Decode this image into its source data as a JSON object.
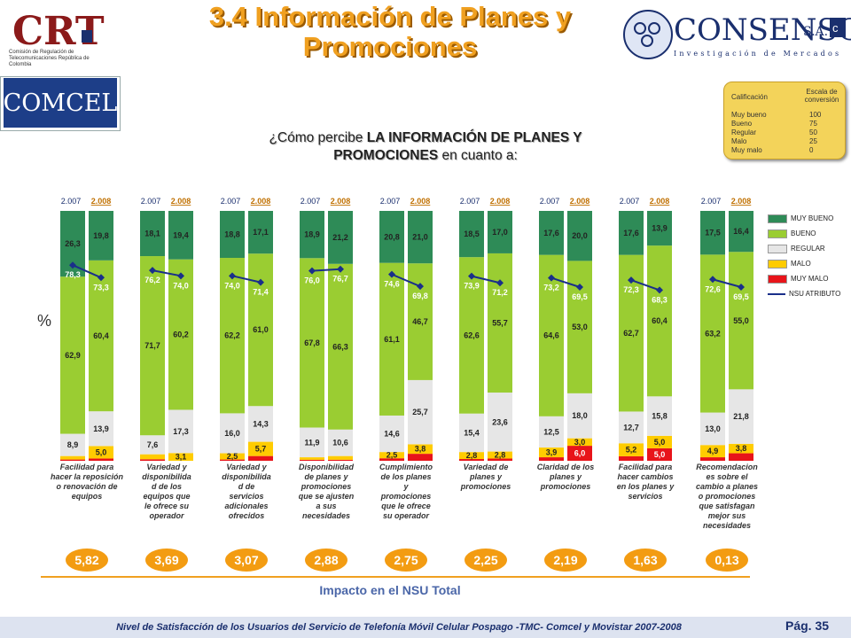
{
  "header": {
    "title_line1": "3.4 Información de Planes y",
    "title_line2": "Promociones"
  },
  "crt_logo": {
    "text": "CRT",
    "subtitle": "Comisión de Regulación de Telecomunicaciones República de Colombia"
  },
  "consenso_logo": {
    "name": "CONSENSO",
    "suffix": "S.A.",
    "tagline": "Investigación de Mercados"
  },
  "comcel_logo": {
    "text": "COMCEL"
  },
  "scale": {
    "header_left": "Calificación",
    "header_right": "Escala de conversión",
    "rows": [
      {
        "label": "Muy bueno",
        "value": "100"
      },
      {
        "label": "Bueno",
        "value": "75"
      },
      {
        "label": "Regular",
        "value": "50"
      },
      {
        "label": "Malo",
        "value": "25"
      },
      {
        "label": "Muy malo",
        "value": "0"
      }
    ]
  },
  "question": {
    "prefix": "¿Cómo percibe ",
    "bold1": "LA INFORMACIÓN DE PLANES Y",
    "bold2": "PROMOCIONES",
    "suffix": " en cuanto a:"
  },
  "ylabel": "%",
  "impact_label": "Impacto en el NSU Total",
  "footer": {
    "text": "Nivel de Satisfacción de los Usuarios del Servicio de Telefonía Móvil Celular Pospago -TMC- Comcel y Movistar 2007-2008",
    "page": "Pág. 35"
  },
  "colors": {
    "muy_bueno": "#2e8b57",
    "bueno": "#9acd32",
    "regular": "#e6e6e6",
    "malo": "#ffcc00",
    "muy_malo": "#e8141a",
    "nsu": "#1a2f8a",
    "impact": "#f39c12"
  },
  "chart_data": {
    "type": "bar",
    "stacked": true,
    "ylim": [
      0,
      100
    ],
    "legend": [
      {
        "key": "muy_bueno",
        "label": "MUY BUENO"
      },
      {
        "key": "bueno",
        "label": "BUENO"
      },
      {
        "key": "regular",
        "label": "REGULAR"
      },
      {
        "key": "malo",
        "label": "MALO"
      },
      {
        "key": "muy_malo",
        "label": "MUY MALO"
      },
      {
        "key": "nsu",
        "label": "NSU ATRIBUTO"
      }
    ],
    "groups": [
      {
        "category": "Facilidad para hacer la reposición o renovación de equipos",
        "impact": "5,82",
        "bars": [
          {
            "year": "2.007",
            "muy_bueno": 26.3,
            "bueno": 62.9,
            "regular": 8.9,
            "malo": 1.4,
            "muy_malo": 0.5,
            "nsu": 78.3,
            "labels": [
              "26,3",
              "62,9",
              "8,9",
              "",
              ""
            ],
            "nsu_label": "78,3"
          },
          {
            "year": "2.008",
            "muy_bueno": 19.8,
            "bueno": 60.4,
            "regular": 13.9,
            "malo": 5.0,
            "muy_malo": 0.9,
            "nsu": 73.3,
            "labels": [
              "19,8",
              "60,4",
              "13,9",
              "5,0",
              ""
            ],
            "nsu_label": "73,3"
          }
        ]
      },
      {
        "category": "Variedad y disponibilidad de los equipos que le ofrece su operador",
        "impact": "3,69",
        "bars": [
          {
            "year": "2.007",
            "muy_bueno": 18.1,
            "bueno": 71.7,
            "regular": 7.6,
            "malo": 2.0,
            "muy_malo": 0.6,
            "nsu": 76.2,
            "labels": [
              "18,1",
              "71,7",
              "7,6",
              "",
              ""
            ],
            "nsu_label": "76,2"
          },
          {
            "year": "2.008",
            "muy_bueno": 19.4,
            "bueno": 60.2,
            "regular": 17.3,
            "malo": 3.1,
            "muy_malo": 0.0,
            "nsu": 74.0,
            "labels": [
              "19,4",
              "60,2",
              "17,3",
              "3,1",
              ""
            ],
            "nsu_label": "74,0"
          }
        ]
      },
      {
        "category": "Variedad y disponibilidad de servicios adicionales ofrecidos",
        "impact": "3,07",
        "bars": [
          {
            "year": "2.007",
            "muy_bueno": 18.8,
            "bueno": 62.2,
            "regular": 16.0,
            "malo": 2.5,
            "muy_malo": 0.5,
            "nsu": 74.0,
            "labels": [
              "18,8",
              "62,2",
              "16,0",
              "2,5",
              ""
            ],
            "nsu_label": "74,0"
          },
          {
            "year": "2.008",
            "muy_bueno": 17.1,
            "bueno": 61.0,
            "regular": 14.3,
            "malo": 5.7,
            "muy_malo": 1.9,
            "nsu": 71.4,
            "labels": [
              "17,1",
              "61,0",
              "14,3",
              "5,7",
              ""
            ],
            "nsu_label": "71,4"
          }
        ]
      },
      {
        "category": "Disponibilidad de planes y promociones que se ajusten a sus necesidades",
        "impact": "2,88",
        "bars": [
          {
            "year": "2.007",
            "muy_bueno": 18.9,
            "bueno": 67.8,
            "regular": 11.9,
            "malo": 1.0,
            "muy_malo": 0.4,
            "nsu": 76.0,
            "labels": [
              "18,9",
              "67,8",
              "11,9",
              "",
              ""
            ],
            "nsu_label": "76,0"
          },
          {
            "year": "2.008",
            "muy_bueno": 21.2,
            "bueno": 66.3,
            "regular": 10.6,
            "malo": 1.5,
            "muy_malo": 0.4,
            "nsu": 76.7,
            "labels": [
              "21,2",
              "66,3",
              "10,6",
              "",
              ""
            ],
            "nsu_label": "76,7"
          }
        ]
      },
      {
        "category": "Cumplimiento de los planes y promociones que le ofrece su operador",
        "impact": "2,75",
        "bars": [
          {
            "year": "2.007",
            "muy_bueno": 20.8,
            "bueno": 61.1,
            "regular": 14.6,
            "malo": 2.5,
            "muy_malo": 1.0,
            "nsu": 74.6,
            "labels": [
              "20,8",
              "61,1",
              "14,6",
              "2,5",
              ""
            ],
            "nsu_label": "74,6"
          },
          {
            "year": "2.008",
            "muy_bueno": 21.0,
            "bueno": 46.7,
            "regular": 25.7,
            "malo": 3.8,
            "muy_malo": 2.8,
            "nsu": 69.8,
            "labels": [
              "21,0",
              "46,7",
              "25,7",
              "3,8",
              ""
            ],
            "nsu_label": "69,8"
          }
        ]
      },
      {
        "category": "Variedad de planes y promociones",
        "impact": "2,25",
        "bars": [
          {
            "year": "2.007",
            "muy_bueno": 18.5,
            "bueno": 62.6,
            "regular": 15.4,
            "malo": 2.8,
            "muy_malo": 0.7,
            "nsu": 73.9,
            "labels": [
              "18,5",
              "62,6",
              "15,4",
              "2,8",
              ""
            ],
            "nsu_label": "73,9"
          },
          {
            "year": "2.008",
            "muy_bueno": 17.0,
            "bueno": 55.7,
            "regular": 23.6,
            "malo": 2.8,
            "muy_malo": 0.9,
            "nsu": 71.2,
            "labels": [
              "17,0",
              "55,7",
              "23,6",
              "2,8",
              ""
            ],
            "nsu_label": "71,2"
          }
        ]
      },
      {
        "category": "Claridad de los planes y promociones",
        "impact": "2,19",
        "bars": [
          {
            "year": "2.007",
            "muy_bueno": 17.6,
            "bueno": 64.6,
            "regular": 12.5,
            "malo": 3.9,
            "muy_malo": 1.4,
            "nsu": 73.2,
            "labels": [
              "17,6",
              "64,6",
              "12,5",
              "3,9",
              ""
            ],
            "nsu_label": "73,2"
          },
          {
            "year": "2.008",
            "muy_bueno": 20.0,
            "bueno": 53.0,
            "regular": 18.0,
            "malo": 3.0,
            "muy_malo": 6.0,
            "nsu": 69.5,
            "labels": [
              "20,0",
              "53,0",
              "18,0",
              "3,0",
              "6,0"
            ],
            "nsu_label": "69,5"
          }
        ]
      },
      {
        "category": "Facilidad para hacer cambios en los planes y servicios",
        "impact": "1,63",
        "bars": [
          {
            "year": "2.007",
            "muy_bueno": 17.6,
            "bueno": 62.7,
            "regular": 12.7,
            "malo": 5.2,
            "muy_malo": 1.8,
            "nsu": 72.3,
            "labels": [
              "17,6",
              "62,7",
              "12,7",
              "5,2",
              ""
            ],
            "nsu_label": "72,3"
          },
          {
            "year": "2.008",
            "muy_bueno": 13.9,
            "bueno": 60.4,
            "regular": 15.8,
            "malo": 5.0,
            "muy_malo": 5.0,
            "nsu": 68.3,
            "labels": [
              "13,9",
              "60,4",
              "15,8",
              "5,0",
              "5,0"
            ],
            "nsu_label": "68,3"
          }
        ]
      },
      {
        "category": "Recomendaciones sobre el cambio a planes o promociones que satisfagan mejor sus necesidades",
        "impact": "0,13",
        "bars": [
          {
            "year": "2.007",
            "muy_bueno": 17.5,
            "bueno": 63.2,
            "regular": 13.0,
            "malo": 4.9,
            "muy_malo": 1.4,
            "nsu": 72.6,
            "labels": [
              "17,5",
              "63,2",
              "13,0",
              "4,9",
              ""
            ],
            "nsu_label": "72,6"
          },
          {
            "year": "2.008",
            "muy_bueno": 16.4,
            "bueno": 55.0,
            "regular": 21.8,
            "malo": 3.8,
            "muy_malo": 3.0,
            "nsu": 69.5,
            "labels": [
              "16,4",
              "55,0",
              "21,8",
              "3,8",
              ""
            ],
            "nsu_label": "69,5"
          }
        ]
      }
    ],
    "category_labels": [
      [
        "Facilidad para",
        "hacer la reposición",
        "o renovación de",
        "equipos"
      ],
      [
        "Variedad y",
        "disponibilida",
        "d de los",
        "equipos que",
        "le ofrece su",
        "operador"
      ],
      [
        "Variedad y",
        "disponibilida",
        "d de",
        "servicios",
        "adicionales",
        "ofrecidos"
      ],
      [
        "Disponibilidad",
        "de planes y",
        "promociones",
        "que se ajusten",
        "a sus",
        "necesidades"
      ],
      [
        "Cumplimiento",
        "de los planes",
        "y",
        "promociones",
        "que le ofrece",
        "su operador"
      ],
      [
        "Variedad de",
        "planes y",
        "promociones"
      ],
      [
        "Claridad de los",
        "planes y",
        "promociones"
      ],
      [
        "Facilidad para",
        "hacer cambios",
        "en los planes y",
        "servicios"
      ],
      [
        "Recomendacion",
        "es sobre el",
        "cambio a planes",
        "o promociones",
        "que satisfagan",
        "mejor sus",
        "necesidades"
      ]
    ]
  }
}
